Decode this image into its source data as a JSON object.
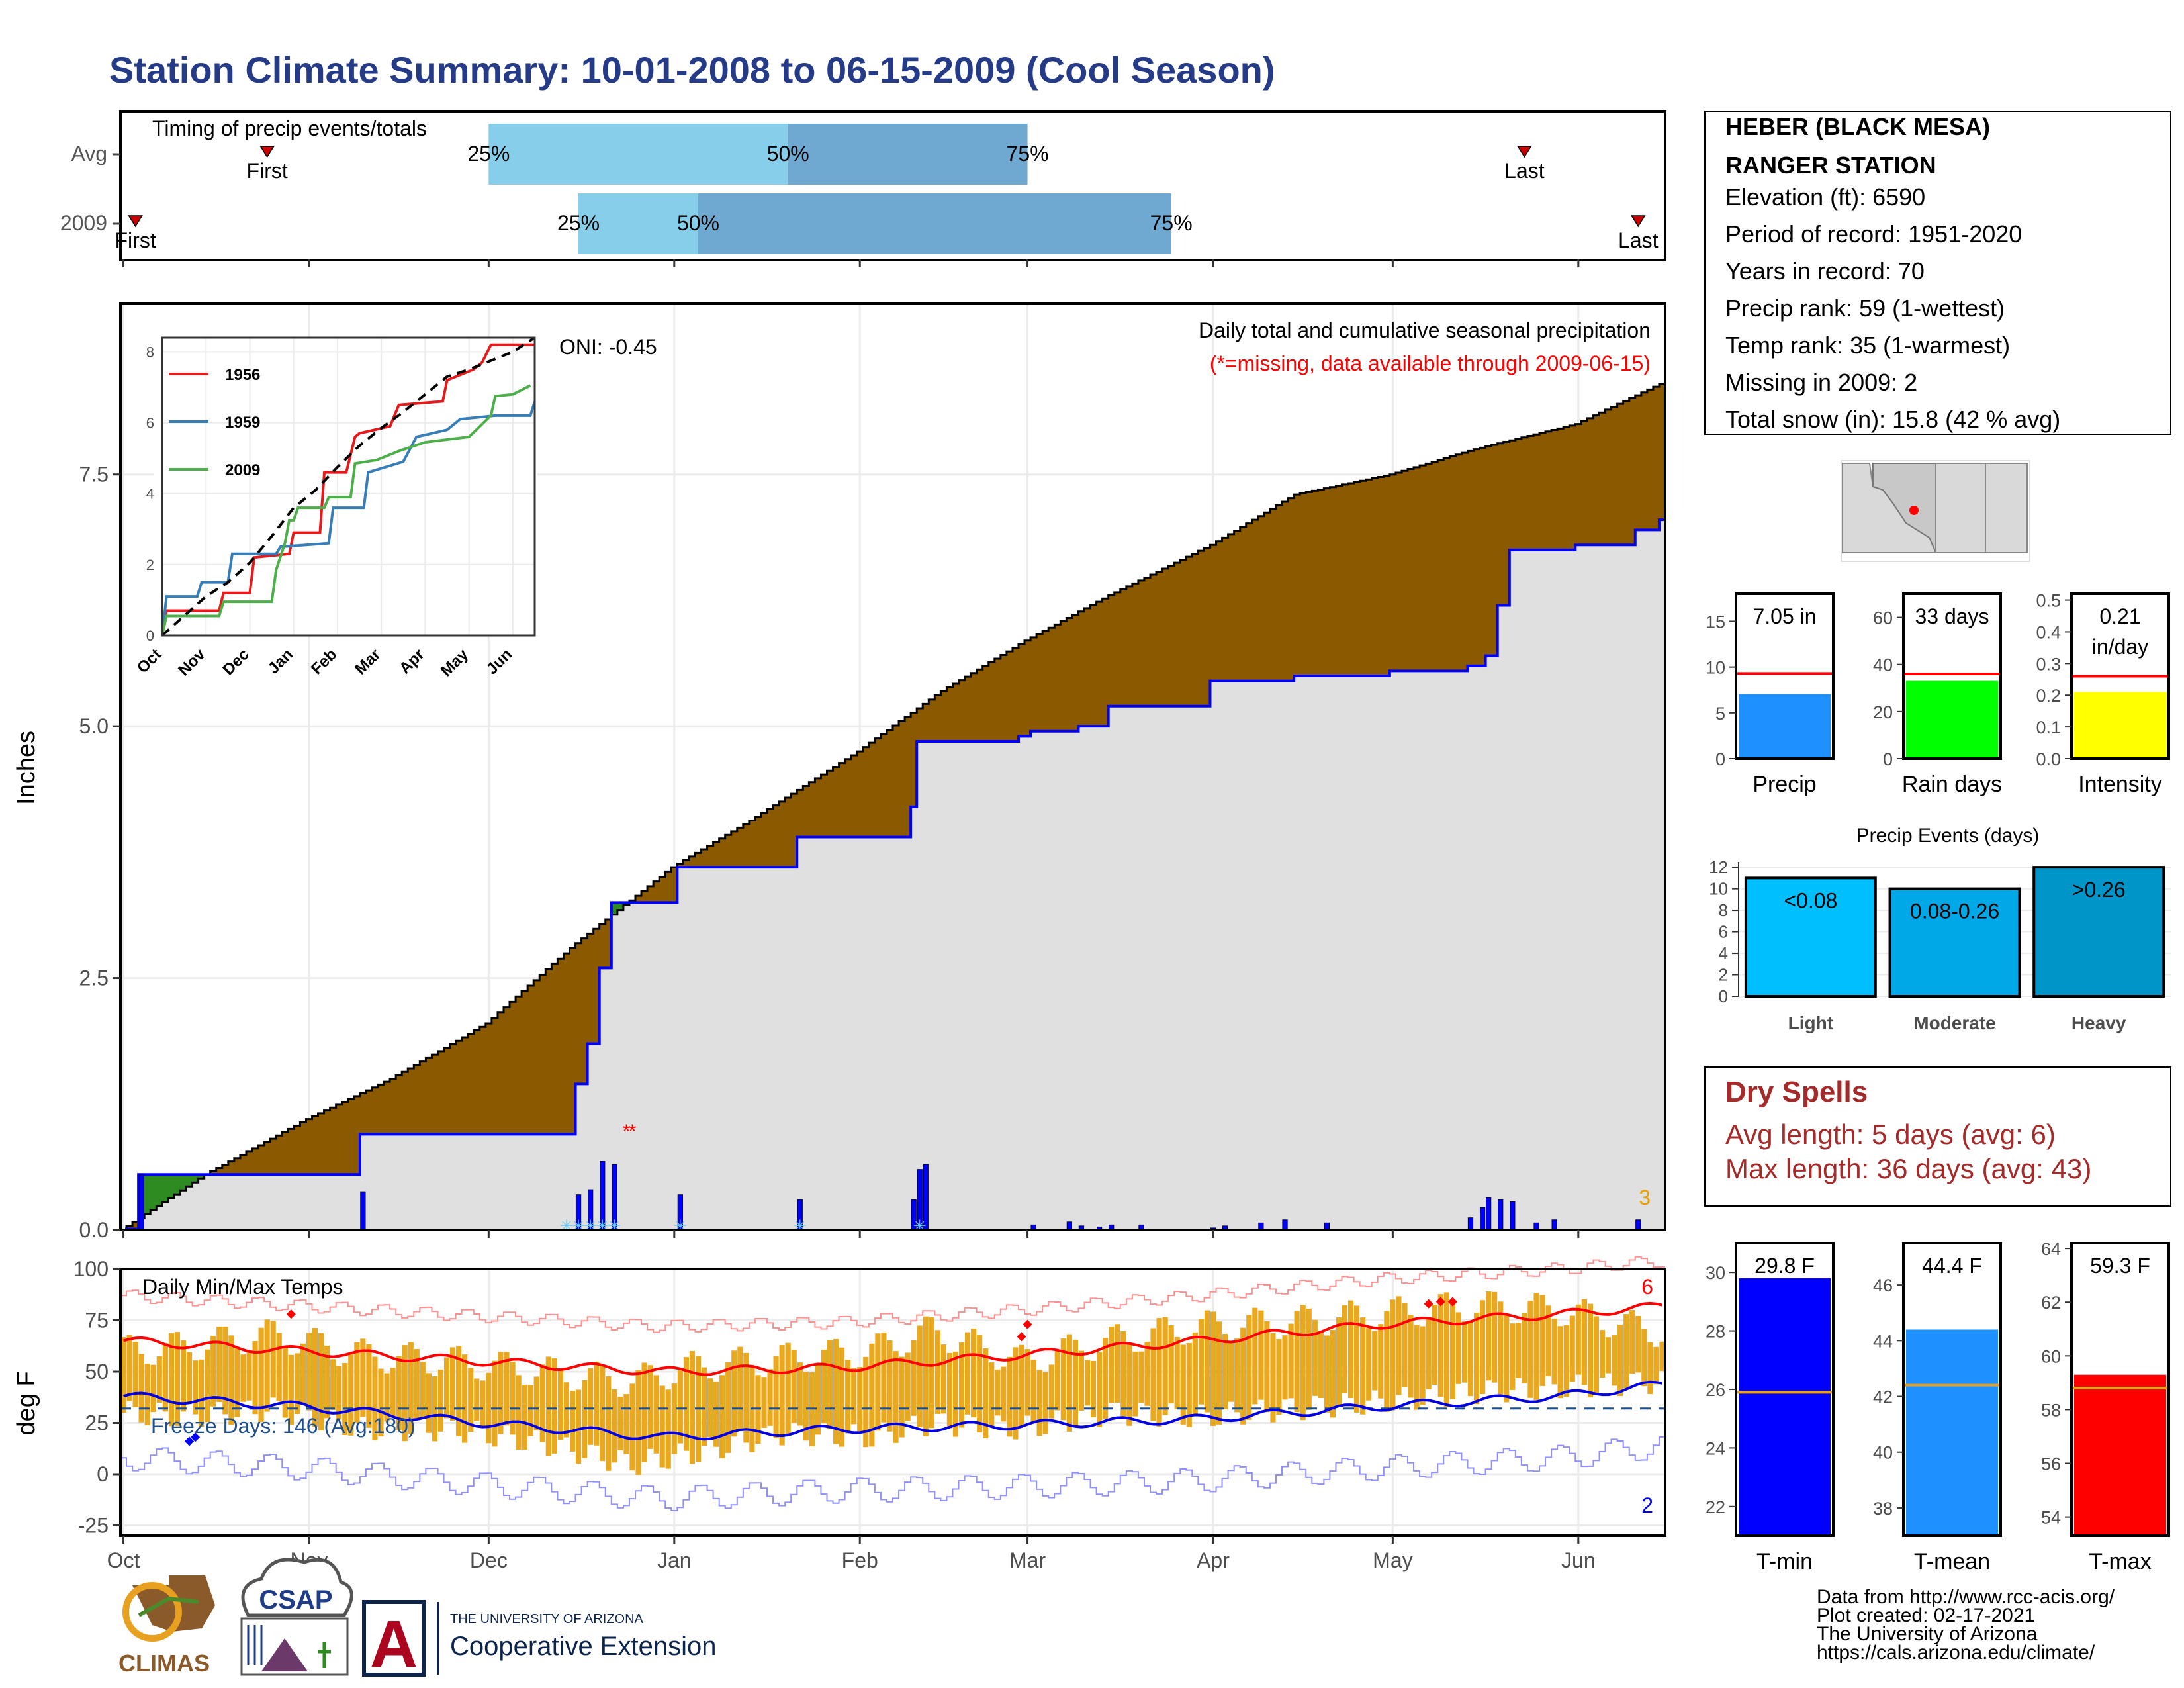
{
  "title": "Station Climate Summary: 10-01-2008 to 06-15-2009 (Cool Season)",
  "colors": {
    "title": "#253b87",
    "brown": "#8b5a00",
    "gray_fill": "#e0e0e0",
    "blue": "#0000ff",
    "red": "#ff0000",
    "green": "#2e8b22",
    "light_blue": "#87ceeb",
    "mid_blue": "#6fa8d0",
    "orange": "#e8a820",
    "dry_spell_red": "#a52a2a"
  },
  "station_info": {
    "name_line1": "HEBER (BLACK MESA)",
    "name_line2": "RANGER STATION",
    "elevation": "Elevation (ft): 6590",
    "period": "Period of record: 1951-2020",
    "years": "Years in record: 70",
    "precip_rank": "Precip rank: 59 (1-wettest)",
    "temp_rank": "Temp rank: 35 (1-warmest)",
    "missing": "Missing in 2009: 2",
    "snow": "Total snow (in): 15.8 (42 % avg)"
  },
  "dry_spells": {
    "title": "Dry Spells",
    "avg": "Avg length: 5 days (avg: 6)",
    "max": "Max length: 36 days (avg: 43)"
  },
  "footer": {
    "source": "Data from http://www.rcc-acis.org/",
    "created": "Plot created: 02-17-2021",
    "univ": "The University of Arizona",
    "url": "https://cals.arizona.edu/climate/",
    "climas": "CLIMAS",
    "csap": "CSAP",
    "ua_small": "THE UNIVERSITY OF ARIZONA",
    "coop": "Cooperative Extension",
    "ua_letter": "A"
  },
  "chart_data": [
    {
      "id": "timing",
      "type": "bar",
      "title": "Timing of precip events/totals",
      "categories": [
        "Avg",
        "2009"
      ],
      "quantile_labels": [
        "25%",
        "50%",
        "75%"
      ],
      "marker_labels": [
        "First",
        "Last"
      ],
      "rows": [
        {
          "label": "Avg",
          "first": "2008-10-25",
          "q25": "2008-12-01",
          "q50": "2009-01-20",
          "q75": "2009-03-01",
          "last": "2009-05-23"
        },
        {
          "label": "2009",
          "first": "2008-10-03",
          "q25": "2008-12-16",
          "q50": "2009-01-05",
          "q75": "2009-03-25",
          "last": "2009-06-11"
        }
      ]
    },
    {
      "id": "precip",
      "type": "area",
      "title": "Daily total and cumulative seasonal precipitation",
      "subtitle": "(*=missing, data available through 2009-06-15)",
      "ylabel": "Inches",
      "ylim": [
        0,
        9.2
      ],
      "y_ticks": [
        "0.0",
        "2.5",
        "5.0",
        "7.5"
      ],
      "x_ticks": [
        "Oct",
        "Nov",
        "Dec",
        "Jan",
        "Feb",
        "Mar",
        "Apr",
        "May",
        "Jun"
      ],
      "corner_count": "3",
      "average_cumulative": [
        [
          "2008-10-01",
          0.0
        ],
        [
          "2008-10-15",
          0.55
        ],
        [
          "2008-11-01",
          1.1
        ],
        [
          "2008-11-15",
          1.5
        ],
        [
          "2008-12-01",
          2.05
        ],
        [
          "2008-12-15",
          2.8
        ],
        [
          "2009-01-01",
          3.6
        ],
        [
          "2009-01-15",
          4.1
        ],
        [
          "2009-02-01",
          4.75
        ],
        [
          "2009-02-15",
          5.35
        ],
        [
          "2009-03-01",
          5.85
        ],
        [
          "2009-03-15",
          6.3
        ],
        [
          "2009-04-01",
          6.8
        ],
        [
          "2009-04-15",
          7.3
        ],
        [
          "2009-05-01",
          7.5
        ],
        [
          "2009-05-15",
          7.75
        ],
        [
          "2009-06-01",
          8.0
        ],
        [
          "2009-06-15",
          8.4
        ]
      ],
      "observed_cumulative": [
        [
          "2008-10-01",
          0.0
        ],
        [
          "2008-10-02",
          0.01
        ],
        [
          "2008-10-04",
          0.55
        ],
        [
          "2008-11-09",
          0.55
        ],
        [
          "2008-11-10",
          0.95
        ],
        [
          "2008-12-15",
          0.95
        ],
        [
          "2008-12-16",
          1.45
        ],
        [
          "2008-12-18",
          1.85
        ],
        [
          "2008-12-20",
          2.6
        ],
        [
          "2008-12-21",
          2.6
        ],
        [
          "2008-12-22",
          3.25
        ],
        [
          "2009-01-01",
          3.25
        ],
        [
          "2009-01-02",
          3.6
        ],
        [
          "2009-01-21",
          3.6
        ],
        [
          "2009-01-22",
          3.9
        ],
        [
          "2009-02-09",
          3.9
        ],
        [
          "2009-02-10",
          4.2
        ],
        [
          "2009-02-11",
          4.85
        ],
        [
          "2009-02-28",
          4.9
        ],
        [
          "2009-03-02",
          4.95
        ],
        [
          "2009-03-10",
          5.0
        ],
        [
          "2009-03-15",
          5.2
        ],
        [
          "2009-04-01",
          5.45
        ],
        [
          "2009-04-15",
          5.5
        ],
        [
          "2009-05-01",
          5.55
        ],
        [
          "2009-05-14",
          5.6
        ],
        [
          "2009-05-17",
          5.7
        ],
        [
          "2009-05-19",
          6.2
        ],
        [
          "2009-05-21",
          6.75
        ],
        [
          "2009-06-01",
          6.8
        ],
        [
          "2009-06-11",
          6.95
        ],
        [
          "2009-06-15",
          7.05
        ]
      ],
      "daily_bars": [
        [
          "2008-10-04",
          0.55
        ],
        [
          "2008-11-10",
          0.38
        ],
        [
          "2008-12-16",
          0.35
        ],
        [
          "2008-12-18",
          0.4
        ],
        [
          "2008-12-20",
          0.68
        ],
        [
          "2008-12-22",
          0.65
        ],
        [
          "2009-01-02",
          0.35
        ],
        [
          "2009-01-22",
          0.3
        ],
        [
          "2009-02-10",
          0.3
        ],
        [
          "2009-02-11",
          0.6
        ],
        [
          "2009-02-12",
          0.65
        ],
        [
          "2009-03-02",
          0.05
        ],
        [
          "2009-03-08",
          0.08
        ],
        [
          "2009-03-10",
          0.04
        ],
        [
          "2009-03-13",
          0.03
        ],
        [
          "2009-03-15",
          0.05
        ],
        [
          "2009-03-20",
          0.05
        ],
        [
          "2009-04-01",
          0.02
        ],
        [
          "2009-04-03",
          0.04
        ],
        [
          "2009-04-09",
          0.07
        ],
        [
          "2009-04-13",
          0.1
        ],
        [
          "2009-04-20",
          0.07
        ],
        [
          "2009-05-14",
          0.12
        ],
        [
          "2009-05-16",
          0.22
        ],
        [
          "2009-05-17",
          0.32
        ],
        [
          "2009-05-19",
          0.3
        ],
        [
          "2009-05-21",
          0.28
        ],
        [
          "2009-05-25",
          0.07
        ],
        [
          "2009-05-28",
          0.1
        ],
        [
          "2009-06-11",
          0.1
        ]
      ],
      "snow_days": [
        "2008-12-14",
        "2008-12-16",
        "2008-12-18",
        "2008-12-20",
        "2008-12-22",
        "2009-01-02",
        "2009-01-22",
        "2009-02-11"
      ],
      "missing_days": [
        "2008-12-24",
        "2008-12-25"
      ]
    },
    {
      "id": "inset",
      "type": "line",
      "oni": "ONI: -0.45",
      "x_ticks": [
        "Oct",
        "Nov",
        "Dec",
        "Jan",
        "Feb",
        "Mar",
        "Apr",
        "May",
        "Jun"
      ],
      "y_ticks": [
        "0",
        "2",
        "4",
        "6",
        "8"
      ],
      "ylim": [
        0,
        8.4
      ],
      "series": [
        {
          "name": "1956",
          "color": "#e41a1c",
          "points": [
            [
              0,
              0
            ],
            [
              0.1,
              0.7
            ],
            [
              1.3,
              0.7
            ],
            [
              1.4,
              1.2
            ],
            [
              2.0,
              1.2
            ],
            [
              2.1,
              2.2
            ],
            [
              2.9,
              2.3
            ],
            [
              3.0,
              2.9
            ],
            [
              3.6,
              2.9
            ],
            [
              3.7,
              4.6
            ],
            [
              4.2,
              4.6
            ],
            [
              4.4,
              5.6
            ],
            [
              4.5,
              5.7
            ],
            [
              5.2,
              5.9
            ],
            [
              5.4,
              6.5
            ],
            [
              6.4,
              6.6
            ],
            [
              6.5,
              7.2
            ],
            [
              7.1,
              7.5
            ],
            [
              7.3,
              7.7
            ],
            [
              7.5,
              8.2
            ],
            [
              8.5,
              8.2
            ]
          ]
        },
        {
          "name": "1959",
          "color": "#377eb8",
          "points": [
            [
              0,
              0
            ],
            [
              0.1,
              1.1
            ],
            [
              0.8,
              1.1
            ],
            [
              0.9,
              1.5
            ],
            [
              1.5,
              1.5
            ],
            [
              1.6,
              2.3
            ],
            [
              2.6,
              2.3
            ],
            [
              2.7,
              2.5
            ],
            [
              3.8,
              2.6
            ],
            [
              3.9,
              3.6
            ],
            [
              4.6,
              3.6
            ],
            [
              4.7,
              4.6
            ],
            [
              5.5,
              4.9
            ],
            [
              5.8,
              5.6
            ],
            [
              6.5,
              5.8
            ],
            [
              6.8,
              6.1
            ],
            [
              7.6,
              6.2
            ],
            [
              8.4,
              6.2
            ],
            [
              8.5,
              6.6
            ]
          ]
        },
        {
          "name": "2009",
          "color": "#4daf4a",
          "points": [
            [
              0,
              0
            ],
            [
              0.1,
              0.55
            ],
            [
              1.3,
              0.55
            ],
            [
              1.4,
              0.95
            ],
            [
              2.5,
              0.95
            ],
            [
              2.6,
              1.85
            ],
            [
              2.8,
              2.6
            ],
            [
              2.9,
              3.25
            ],
            [
              3.0,
              3.25
            ],
            [
              3.1,
              3.6
            ],
            [
              3.7,
              3.6
            ],
            [
              3.8,
              3.9
            ],
            [
              4.3,
              3.9
            ],
            [
              4.4,
              4.85
            ],
            [
              4.9,
              4.95
            ],
            [
              5.4,
              5.2
            ],
            [
              6.0,
              5.45
            ],
            [
              7.0,
              5.6
            ],
            [
              7.5,
              6.2
            ],
            [
              7.6,
              6.75
            ],
            [
              8.0,
              6.8
            ],
            [
              8.4,
              7.05
            ]
          ]
        },
        {
          "name": "",
          "color": "#000000",
          "dashed": true,
          "points": [
            [
              0,
              0
            ],
            [
              0.5,
              0.55
            ],
            [
              1.0,
              1.1
            ],
            [
              1.5,
              1.5
            ],
            [
              2.0,
              2.05
            ],
            [
              2.5,
              2.8
            ],
            [
              3.0,
              3.6
            ],
            [
              3.5,
              4.1
            ],
            [
              4.0,
              4.75
            ],
            [
              4.5,
              5.35
            ],
            [
              5.0,
              5.85
            ],
            [
              5.5,
              6.3
            ],
            [
              6.0,
              6.8
            ],
            [
              6.5,
              7.3
            ],
            [
              7.0,
              7.5
            ],
            [
              7.5,
              7.75
            ],
            [
              8.0,
              8.0
            ],
            [
              8.5,
              8.4
            ]
          ]
        }
      ]
    },
    {
      "id": "temps",
      "type": "line",
      "title": "Daily Min/Max Temps",
      "ylabel": "deg F",
      "ylim": [
        -30,
        100
      ],
      "y_ticks": [
        "100",
        "75",
        "50",
        "25",
        "0",
        "-25"
      ],
      "x_ticks": [
        "Oct",
        "Nov",
        "Dec",
        "Jan",
        "Feb",
        "Mar",
        "Apr",
        "May",
        "Jun"
      ],
      "freeze_label": "Freeze Days: 146 (Avg:180)",
      "freeze_line": 32,
      "record_high_count": "6",
      "record_low_count": "2",
      "avg_max": [
        [
          0,
          65
        ],
        [
          30,
          60
        ],
        [
          60,
          55
        ],
        [
          90,
          50
        ],
        [
          120,
          52
        ],
        [
          150,
          58
        ],
        [
          180,
          65
        ],
        [
          210,
          73
        ],
        [
          240,
          78
        ],
        [
          258,
          82
        ]
      ],
      "avg_min": [
        [
          0,
          38
        ],
        [
          30,
          33
        ],
        [
          60,
          25
        ],
        [
          90,
          18
        ],
        [
          120,
          22
        ],
        [
          150,
          24
        ],
        [
          180,
          27
        ],
        [
          210,
          33
        ],
        [
          240,
          38
        ],
        [
          258,
          44
        ]
      ],
      "daily_range": [
        [
          0,
          30,
          60
        ],
        [
          10,
          28,
          62
        ],
        [
          25,
          32,
          68
        ],
        [
          40,
          22,
          58
        ],
        [
          55,
          22,
          55
        ],
        [
          70,
          15,
          50
        ],
        [
          85,
          5,
          45
        ],
        [
          95,
          10,
          52
        ],
        [
          110,
          20,
          56
        ],
        [
          125,
          18,
          60
        ],
        [
          135,
          25,
          70
        ],
        [
          150,
          22,
          55
        ],
        [
          165,
          30,
          65
        ],
        [
          180,
          28,
          72
        ],
        [
          195,
          32,
          74
        ],
        [
          210,
          35,
          78
        ],
        [
          225,
          40,
          82
        ],
        [
          240,
          42,
          80
        ],
        [
          255,
          45,
          70
        ]
      ]
    },
    {
      "id": "precip_summary",
      "type": "bar",
      "categories": [
        "Precip",
        "Rain days",
        "Intensity"
      ],
      "values": [
        7.05,
        33,
        0.21
      ],
      "averages": [
        9.3,
        36,
        0.26
      ],
      "labels": [
        "7.05 in",
        "33 days",
        "0.21\nin/day"
      ],
      "label_lines": [
        [
          "7.05 in"
        ],
        [
          "33 days"
        ],
        [
          "0.21",
          "in/day"
        ]
      ],
      "bar_colors": [
        "#1e90ff",
        "#00ff00",
        "#ffff00"
      ],
      "ylims": [
        [
          0,
          18
        ],
        [
          0,
          70
        ],
        [
          0,
          0.52
        ]
      ],
      "ytick_sets": [
        [
          "0",
          "5",
          "10",
          "15"
        ],
        [
          "0",
          "20",
          "40",
          "60"
        ],
        [
          "0.0",
          "0.1",
          "0.2",
          "0.3",
          "0.4",
          "0.5"
        ]
      ]
    },
    {
      "id": "precip_events",
      "type": "bar",
      "title": "Precip Events (days)",
      "categories": [
        "Light",
        "Moderate",
        "Heavy"
      ],
      "labels": [
        "<0.08",
        "0.08-0.26",
        ">0.26"
      ],
      "values": [
        11,
        10,
        12
      ],
      "ylim": [
        0,
        12.5
      ],
      "y_ticks": [
        "0",
        "2",
        "4",
        "6",
        "8",
        "10",
        "12"
      ],
      "bar_colors": [
        "#00bfff",
        "#00a8e8",
        "#0095c8"
      ]
    },
    {
      "id": "temp_summary",
      "type": "bar",
      "categories": [
        "T-min",
        "T-mean",
        "T-max"
      ],
      "values": [
        29.8,
        44.4,
        59.3
      ],
      "averages": [
        25.9,
        42.4,
        58.8
      ],
      "labels": [
        "29.8 F",
        "44.4 F",
        "59.3 F"
      ],
      "bar_colors": [
        "#0000ff",
        "#1e90ff",
        "#ff0000"
      ],
      "ylims": [
        [
          21,
          31
        ],
        [
          37,
          47.5
        ],
        [
          53.3,
          64.2
        ]
      ],
      "ytick_sets": [
        [
          "22",
          "24",
          "26",
          "28",
          "30"
        ],
        [
          "38",
          "40",
          "42",
          "44",
          "46"
        ],
        [
          "54",
          "56",
          "58",
          "60",
          "62",
          "64"
        ]
      ]
    }
  ]
}
